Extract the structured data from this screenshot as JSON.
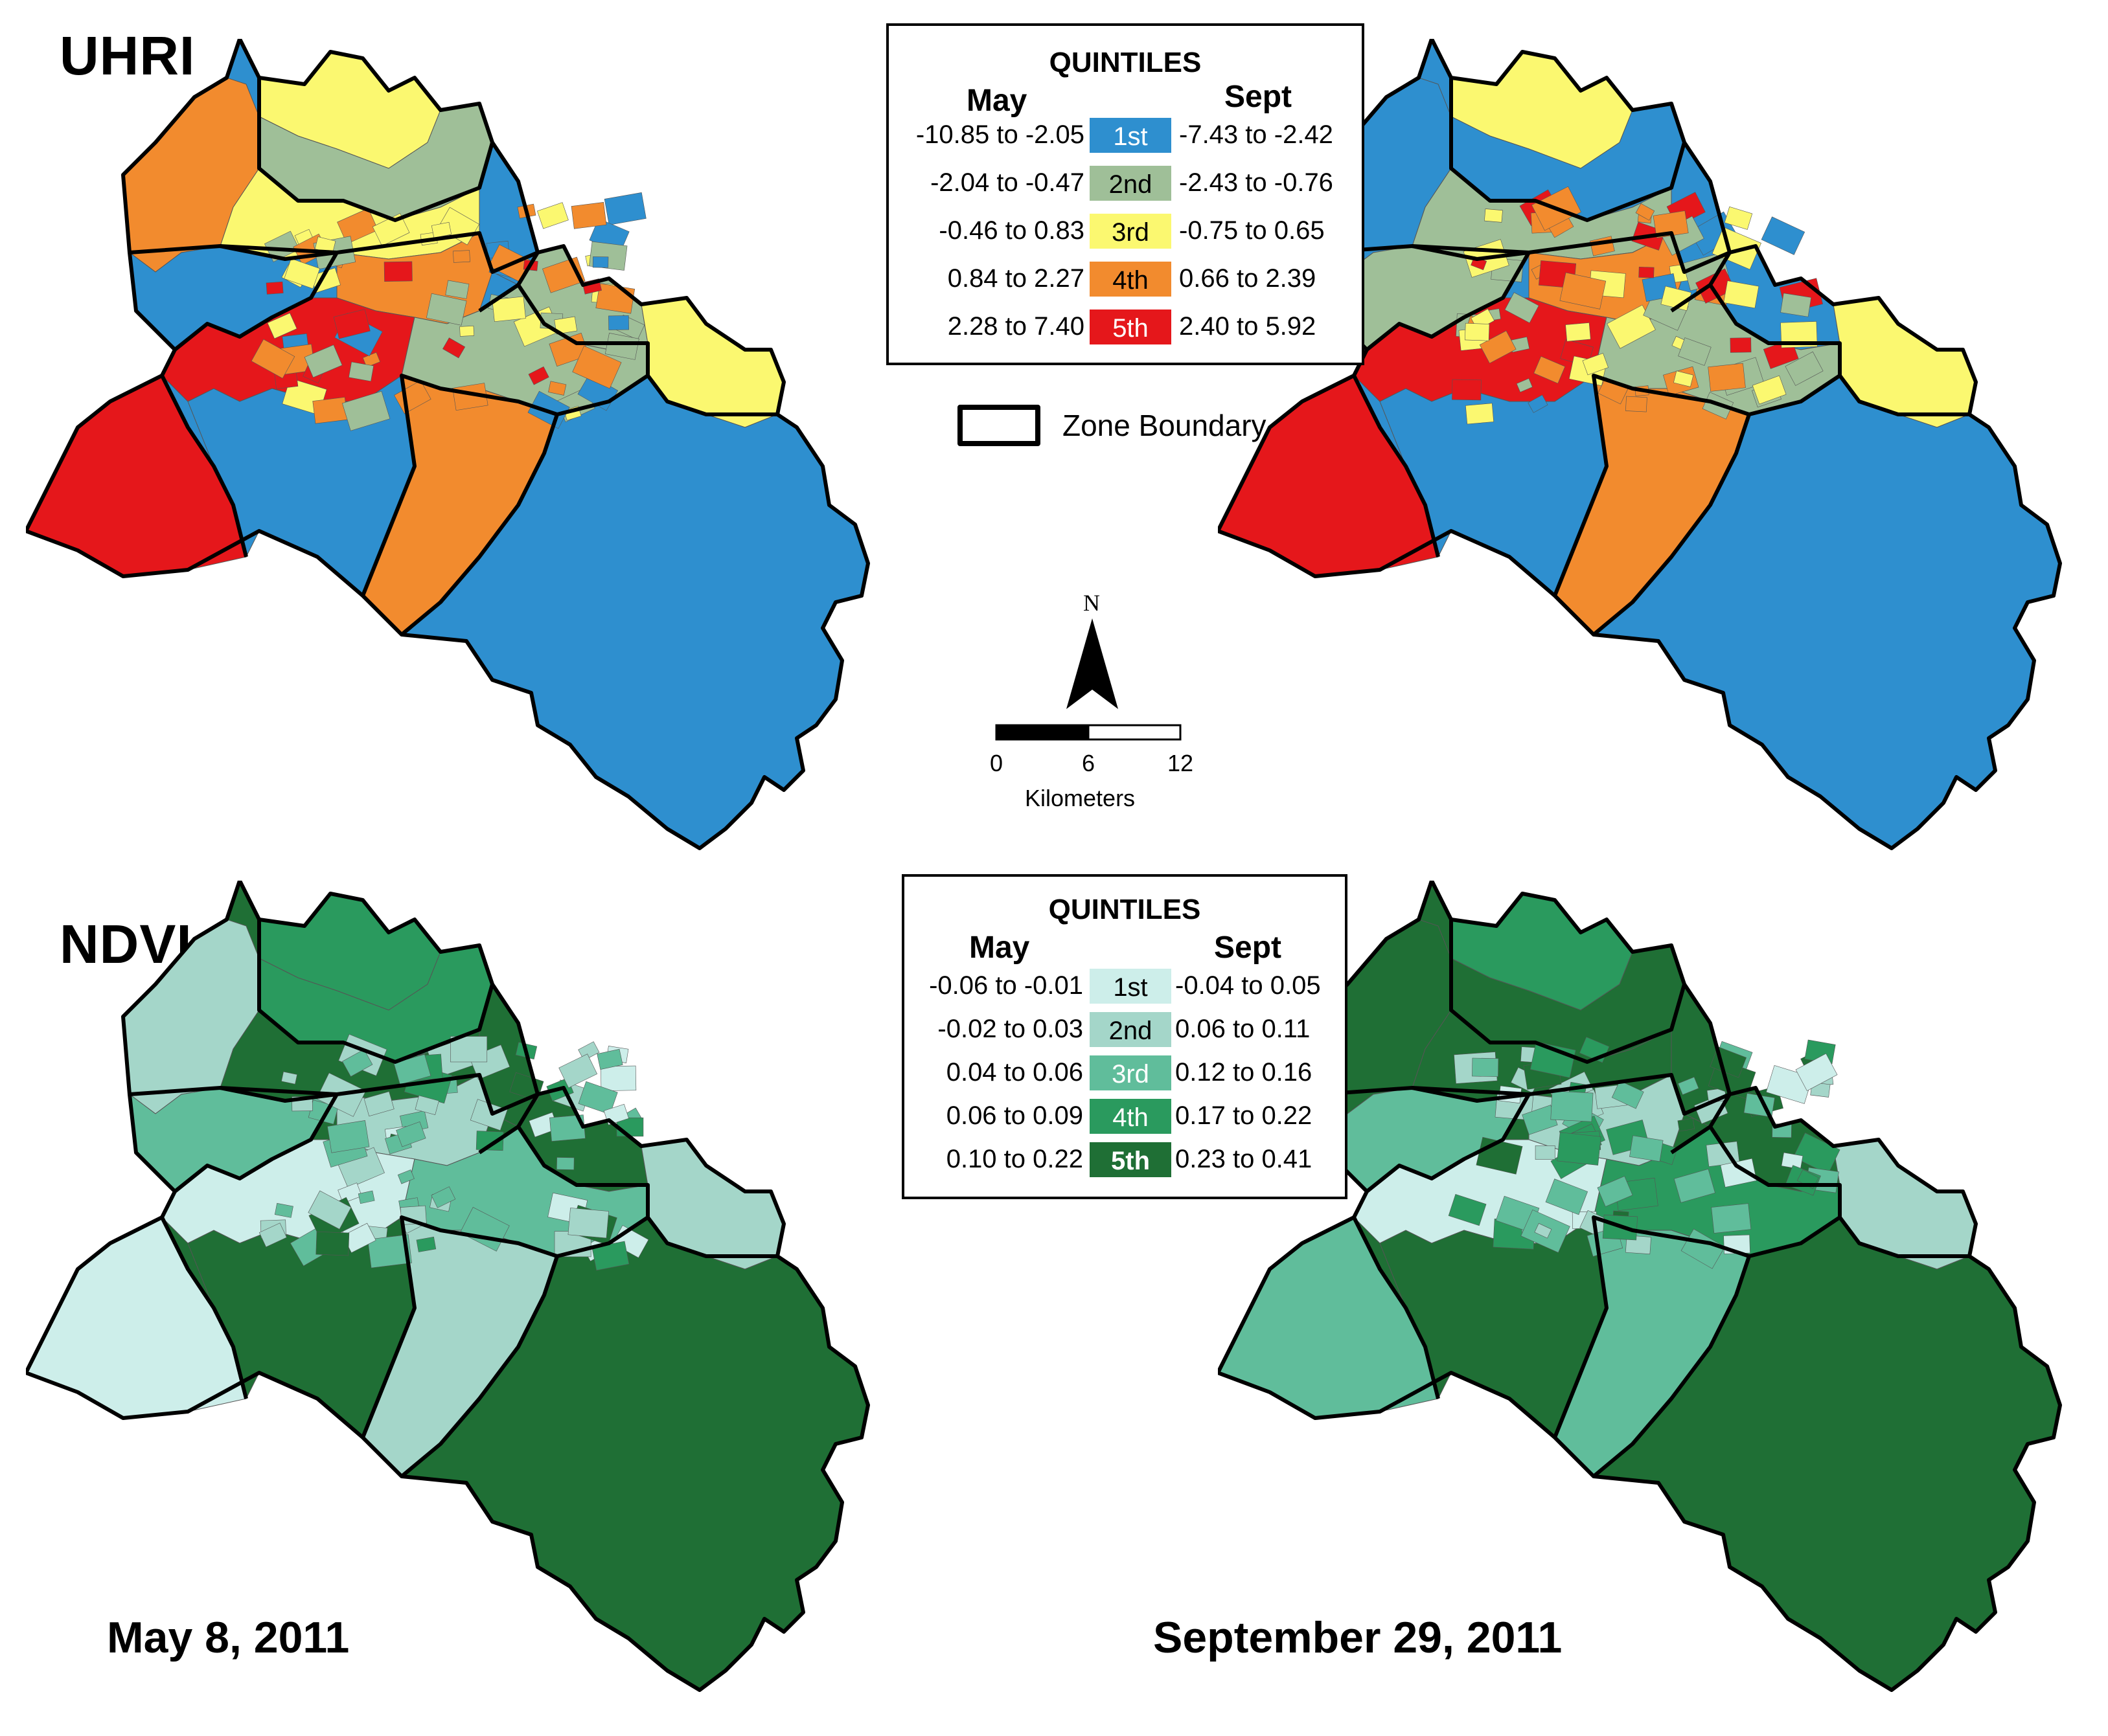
{
  "titles": {
    "uhri": "UHRI",
    "ndvi": "NDVI"
  },
  "dates": {
    "may": "May 8, 2011",
    "sept": "September 29, 2011"
  },
  "colors": {
    "uhri": [
      "#2e8fcf",
      "#9fbf98",
      "#fbf870",
      "#f28b2e",
      "#e5171b"
    ],
    "ndvi": [
      "#cdeeea",
      "#a4d6c9",
      "#60bd9b",
      "#2a9a5e",
      "#1f6f35"
    ],
    "boundary": "#000000",
    "subdivision": "#555555"
  },
  "uhri_legend": {
    "title": "QUINTILES",
    "may_label": "May",
    "sept_label": "Sept",
    "rows": [
      {
        "may": "-10.85 to -2.05",
        "label": "1st",
        "sept": "-7.43 to -2.42"
      },
      {
        "may": "-2.04 to -0.47",
        "label": "2nd",
        "sept": "-2.43 to -0.76"
      },
      {
        "may": "-0.46 to 0.83",
        "label": "3rd",
        "sept": "-0.75 to 0.65"
      },
      {
        "may": "0.84  to 2.27",
        "label": "4th",
        "sept": "0.66 to 2.39"
      },
      {
        "may": "2.28  to 7.40",
        "label": "5th",
        "sept": "2.40 to 5.92"
      }
    ]
  },
  "zone_boundary_label": "Zone Boundary",
  "north_arrow": {
    "label": "N",
    "icon": "north-arrow-icon"
  },
  "scale_bar": {
    "ticks": [
      "0",
      "6",
      "12"
    ],
    "unit": "Kilometers"
  },
  "ndvi_legend": {
    "title": "QUINTILES",
    "may_label": "May",
    "sept_label": "Sept",
    "rows": [
      {
        "may": "-0.06 to -0.01",
        "label": "1st",
        "sept": "-0.04 to 0.05"
      },
      {
        "may": "-0.02 to 0.03",
        "label": "2nd",
        "sept": "0.06 to 0.11"
      },
      {
        "may": "0.04 to 0.06",
        "label": "3rd",
        "sept": "0.12 to 0.16"
      },
      {
        "may": "0.06 to 0.09",
        "label": "4th",
        "sept": "0.17 to 0.22"
      },
      {
        "may": "0.10 to 0.22",
        "label": "5th",
        "sept": "0.23 to 0.41"
      }
    ]
  },
  "maps": [
    {
      "id": "uhri-may",
      "palette": "uhri",
      "quintiles": [
        5,
        4,
        3,
        2,
        3,
        1,
        4,
        1,
        2,
        3,
        5,
        2,
        1,
        4
      ]
    },
    {
      "id": "uhri-sept",
      "palette": "uhri",
      "quintiles": [
        5,
        1,
        3,
        1,
        2,
        2,
        4,
        1,
        1,
        3,
        5,
        2,
        1,
        4
      ]
    },
    {
      "id": "ndvi-may",
      "palette": "ndvi",
      "quintiles": [
        1,
        2,
        4,
        4,
        5,
        3,
        2,
        5,
        5,
        2,
        1,
        3,
        5,
        2
      ]
    },
    {
      "id": "ndvi-sept",
      "palette": "ndvi",
      "quintiles": [
        3,
        5,
        4,
        5,
        5,
        3,
        2,
        5,
        5,
        2,
        1,
        4,
        5,
        3
      ]
    }
  ]
}
